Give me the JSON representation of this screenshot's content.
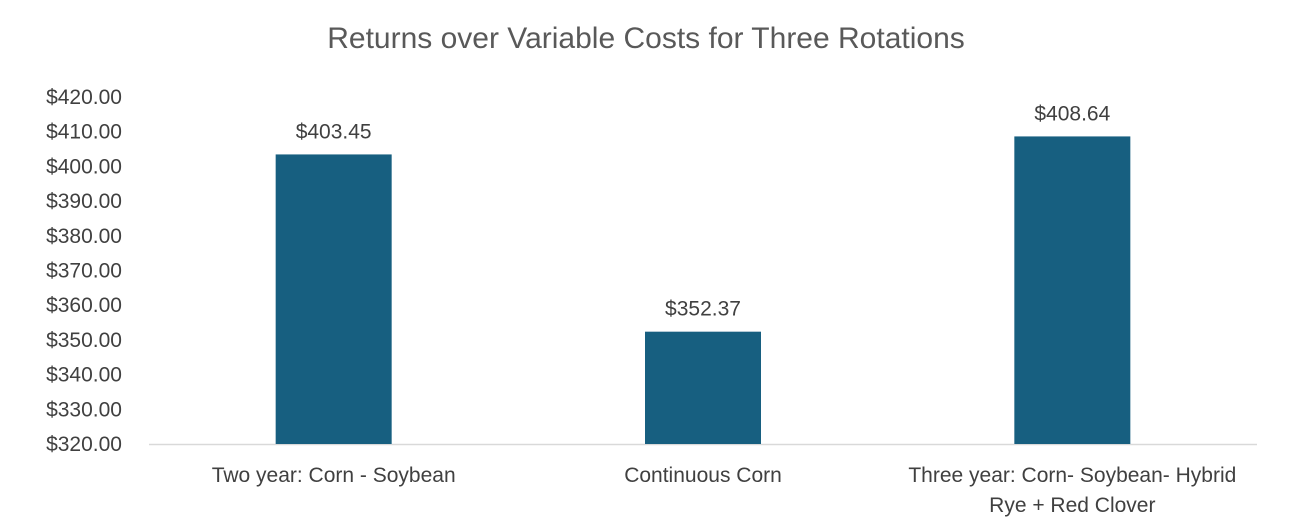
{
  "chart_data": {
    "type": "bar",
    "title": "Returns over Variable Costs for Three Rotations",
    "categories": [
      [
        "Two year: Corn - Soybean"
      ],
      [
        "Continuous Corn"
      ],
      [
        "Three year: Corn- Soybean- Hybrid",
        "Rye + Red Clover"
      ]
    ],
    "values": [
      403.45,
      352.37,
      408.64
    ],
    "data_labels": [
      "$403.45",
      "$352.37",
      "$408.64"
    ],
    "ylim": [
      320,
      420
    ],
    "yticks": [
      320,
      330,
      340,
      350,
      360,
      370,
      380,
      390,
      400,
      410,
      420
    ],
    "ytick_labels": [
      "$320.00",
      "$330.00",
      "$340.00",
      "$350.00",
      "$360.00",
      "$370.00",
      "$380.00",
      "$390.00",
      "$400.00",
      "$410.00",
      "$420.00"
    ],
    "grid": false,
    "legend": "none",
    "bar_color": "#175F80",
    "axis_color": "#D9D9D9"
  }
}
